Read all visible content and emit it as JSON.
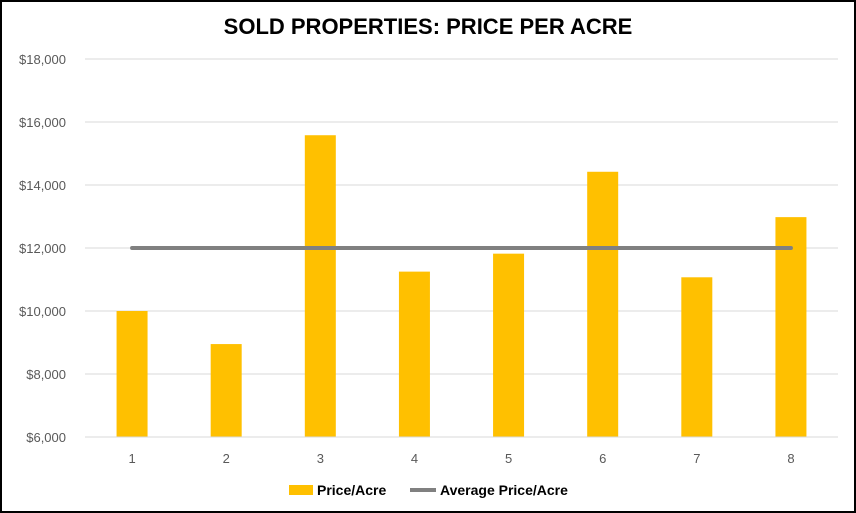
{
  "chart_data": {
    "type": "bar",
    "title": "SOLD PROPERTIES: PRICE PER ACRE",
    "xlabel": "",
    "ylabel": "",
    "categories": [
      "1",
      "2",
      "3",
      "4",
      "5",
      "6",
      "7",
      "8"
    ],
    "ylim": [
      6000,
      18000
    ],
    "yticks": [
      6000,
      8000,
      10000,
      12000,
      14000,
      16000,
      18000
    ],
    "ytick_labels": [
      "$6,000",
      "$8,000",
      "$10,000",
      "$12,000",
      "$14,000",
      "$16,000",
      "$18,000"
    ],
    "grid": true,
    "legend_position": "bottom",
    "series": [
      {
        "name": "Price/Acre",
        "type": "bar",
        "color": "#FFC000",
        "values": [
          10000,
          8950,
          15580,
          11250,
          11820,
          14420,
          11070,
          12980
        ]
      },
      {
        "name": "Average Price/Acre",
        "type": "line",
        "color": "#808080",
        "values": [
          12000,
          12000,
          12000,
          12000,
          12000,
          12000,
          12000,
          12000
        ]
      }
    ]
  }
}
